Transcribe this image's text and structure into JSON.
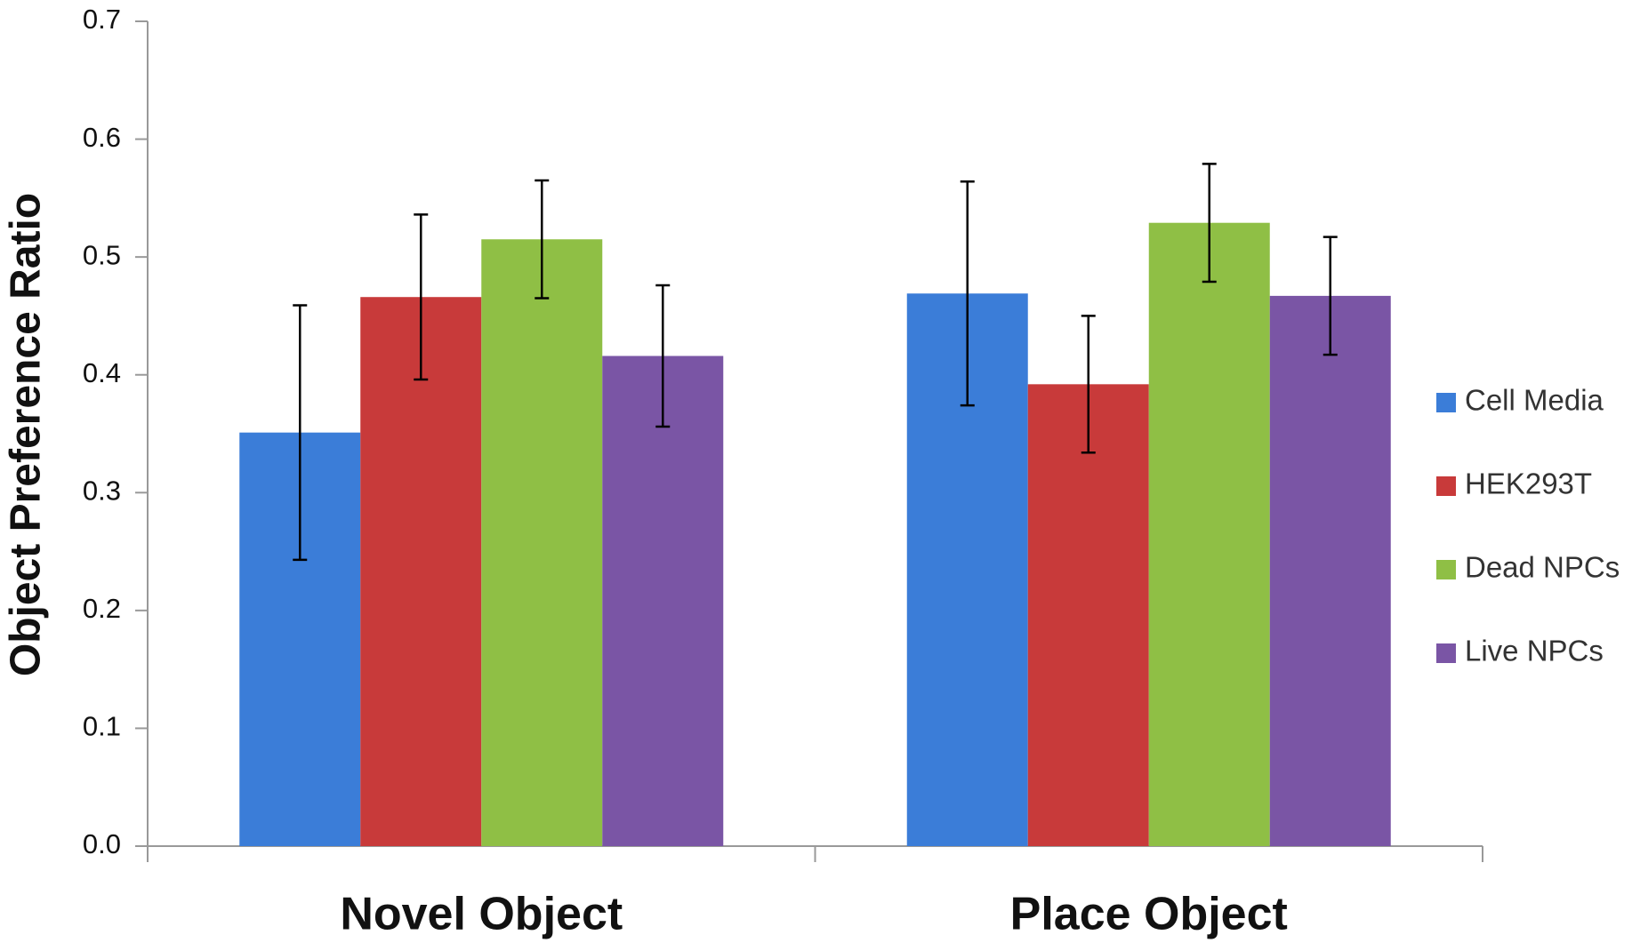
{
  "chart_data": {
    "type": "bar",
    "y_label": "Object Preference Ratio",
    "categories": [
      "Novel Object",
      "Place Object"
    ],
    "series": [
      {
        "name": "Cell Media",
        "color": "#3b7dd8",
        "values": [
          0.351,
          0.469
        ],
        "errors": [
          0.108,
          0.095
        ]
      },
      {
        "name": "HEK293T",
        "color": "#c83a3a",
        "values": [
          0.466,
          0.392
        ],
        "errors": [
          0.07,
          0.058
        ]
      },
      {
        "name": "Dead NPCs",
        "color": "#8fbf45",
        "values": [
          0.515,
          0.529
        ],
        "errors": [
          0.05,
          0.05
        ]
      },
      {
        "name": "Live NPCs",
        "color": "#7a55a5",
        "values": [
          0.416,
          0.467
        ],
        "errors": [
          0.06,
          0.05
        ]
      }
    ],
    "ylim": [
      0,
      0.7
    ],
    "yticks": [
      {
        "value": 0,
        "label": "0.0"
      },
      0.1,
      0.2,
      0.3,
      0.4,
      0.5,
      0.6,
      0.7
    ],
    "legend": "right"
  }
}
